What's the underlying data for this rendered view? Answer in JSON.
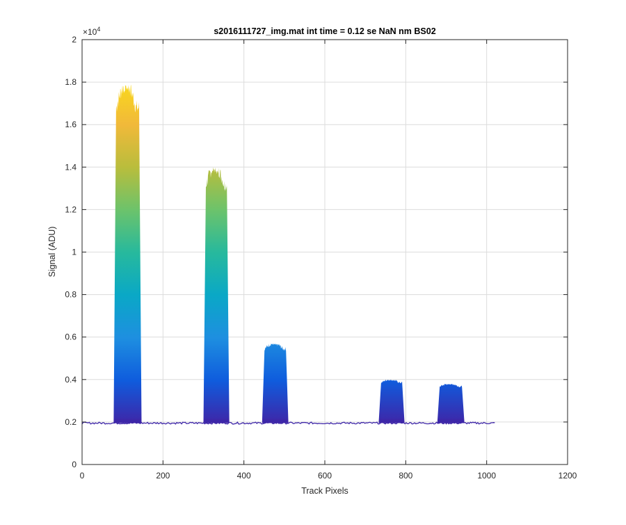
{
  "chart_data": {
    "type": "area",
    "title": "s2016111727_img.mat int time = 0.12 se  NaN nm BS02",
    "xlabel": "Track Pixels",
    "ylabel": "Signal (ADU)",
    "y_exponent_label": "×10",
    "y_exponent_power": "4",
    "xlim": [
      0,
      1200
    ],
    "ylim": [
      0,
      20000
    ],
    "x_ticks": [
      0,
      200,
      400,
      600,
      800,
      1000,
      1200
    ],
    "x_tick_labels": [
      "0",
      "200",
      "400",
      "600",
      "800",
      "1000",
      "1200"
    ],
    "y_ticks": [
      0,
      2000,
      4000,
      6000,
      8000,
      10000,
      12000,
      14000,
      16000,
      18000,
      20000
    ],
    "y_tick_labels": [
      "0",
      "0.2",
      "0.4",
      "0.6",
      "0.8",
      "1",
      "1.2",
      "1.4",
      "1.6",
      "1.8",
      "2"
    ],
    "grid": true,
    "baseline": {
      "x_start": 0,
      "x_end": 1022,
      "value": 1950
    },
    "peaks": [
      {
        "x_start": 80,
        "x_end": 145,
        "peak": 17900
      },
      {
        "x_start": 302,
        "x_end": 362,
        "peak": 14000
      },
      {
        "x_start": 447,
        "x_end": 508,
        "peak": 5700
      },
      {
        "x_start": 735,
        "x_end": 795,
        "peak": 4000
      },
      {
        "x_start": 880,
        "x_end": 943,
        "peak": 3800
      }
    ],
    "colormap": [
      "#3e26a8",
      "#0f5cdd",
      "#1e8fe0",
      "#0aa8c6",
      "#27b99d",
      "#6cc36b",
      "#b9bd3c",
      "#f1b93a",
      "#f9d91b"
    ]
  }
}
